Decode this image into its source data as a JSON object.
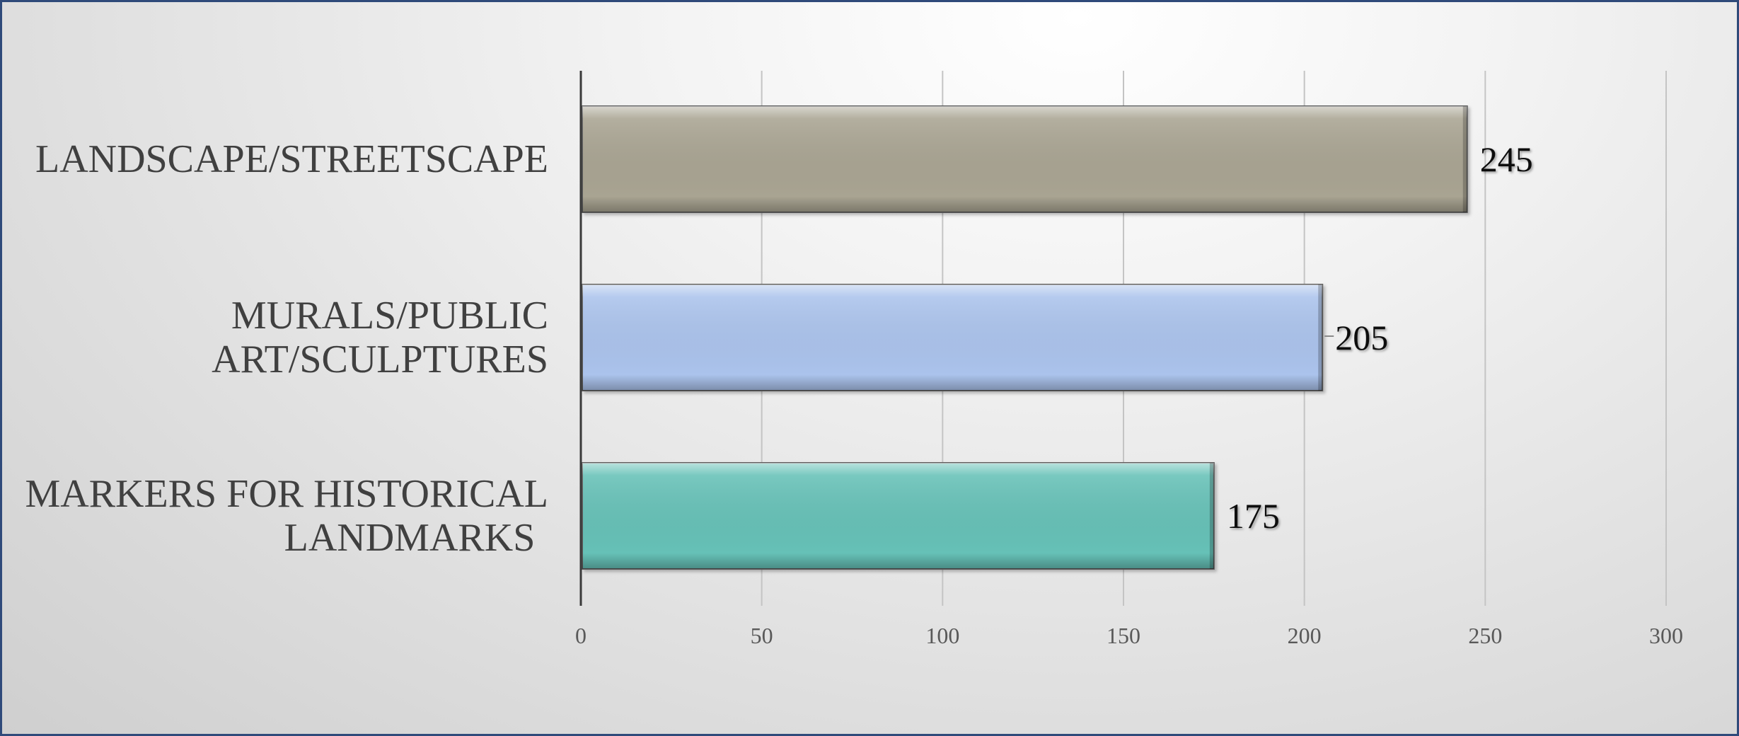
{
  "chart_data": {
    "type": "bar",
    "orientation": "horizontal",
    "categories": [
      "LANDSCAPE/STREETSCAPE",
      "MURALS/PUBLIC ART/SCULPTURES",
      "MARKERS FOR HISTORICAL LANDMARKS"
    ],
    "category_lines": [
      [
        "LANDSCAPE/STREETSCAPE"
      ],
      [
        "MURALS/PUBLIC",
        "ART/SCULPTURES"
      ],
      [
        "MARKERS FOR HISTORICAL",
        "LANDMARKS"
      ]
    ],
    "values": [
      245,
      205,
      175
    ],
    "data_labels": [
      "245",
      "205",
      "175"
    ],
    "colors": [
      "#a9a492",
      "#abc3ec",
      "#66c1b7"
    ],
    "xlim": [
      0,
      300
    ],
    "xticks": [
      0,
      50,
      100,
      150,
      200,
      250,
      300
    ],
    "xtick_labels": [
      "0",
      "50",
      "100",
      "150",
      "200",
      "250",
      "300"
    ],
    "title": "",
    "xlabel": "",
    "ylabel": "",
    "grid": true,
    "legend": "none"
  }
}
